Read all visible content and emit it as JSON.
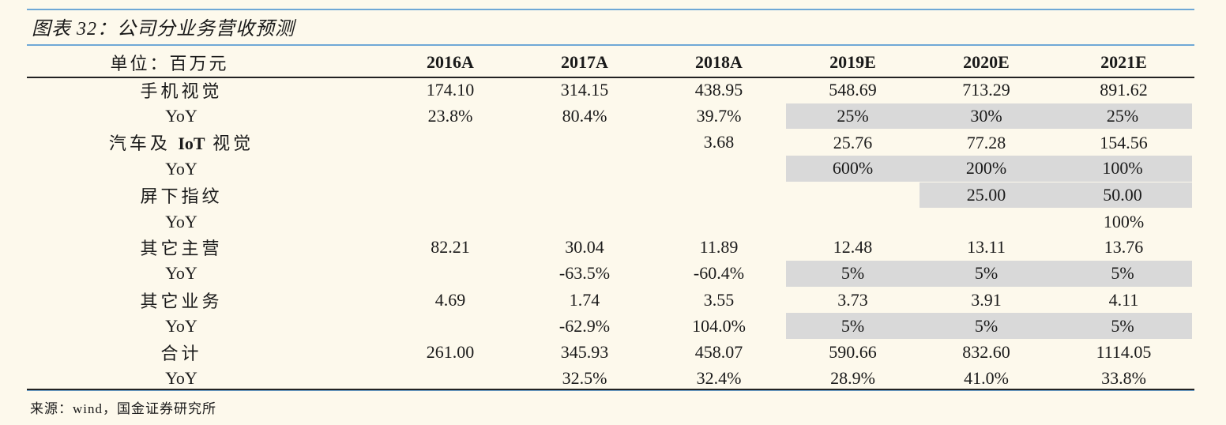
{
  "title": "图表 32：公司分业务营收预测",
  "table": {
    "unit_label": "单位：百万元",
    "columns": [
      "2016A",
      "2017A",
      "2018A",
      "2019E",
      "2020E",
      "2021E"
    ],
    "rows": [
      {
        "label": "手机视觉",
        "values": [
          "174.10",
          "314.15",
          "438.95",
          "548.69",
          "713.29",
          "891.62"
        ],
        "shaded": [
          false,
          false,
          false,
          false,
          false,
          false
        ]
      },
      {
        "label": "YoY",
        "values": [
          "23.8%",
          "80.4%",
          "39.7%",
          "25%",
          "30%",
          "25%"
        ],
        "shaded": [
          false,
          false,
          false,
          true,
          true,
          true
        ]
      },
      {
        "label_prefix": "汽车及 ",
        "label_bold": "IoT",
        "label_suffix": " 视觉",
        "values": [
          "",
          "",
          "3.68",
          "25.76",
          "77.28",
          "154.56"
        ],
        "shaded": [
          false,
          false,
          false,
          false,
          false,
          false
        ]
      },
      {
        "label": "YoY",
        "values": [
          "",
          "",
          "",
          "600%",
          "200%",
          "100%"
        ],
        "shaded": [
          false,
          false,
          false,
          true,
          true,
          true
        ]
      },
      {
        "label": "屏下指纹",
        "values": [
          "",
          "",
          "",
          "",
          "25.00",
          "50.00"
        ],
        "shaded": [
          false,
          false,
          false,
          false,
          true,
          true
        ]
      },
      {
        "label": "YoY",
        "values": [
          "",
          "",
          "",
          "",
          "",
          "100%"
        ],
        "shaded": [
          false,
          false,
          false,
          false,
          false,
          false
        ]
      },
      {
        "label": "其它主营",
        "values": [
          "82.21",
          "30.04",
          "11.89",
          "12.48",
          "13.11",
          "13.76"
        ],
        "shaded": [
          false,
          false,
          false,
          false,
          false,
          false
        ]
      },
      {
        "label": "YoY",
        "values": [
          "",
          "-63.5%",
          "-60.4%",
          "5%",
          "5%",
          "5%"
        ],
        "shaded": [
          false,
          false,
          false,
          true,
          true,
          true
        ]
      },
      {
        "label": "其它业务",
        "values": [
          "4.69",
          "1.74",
          "3.55",
          "3.73",
          "3.91",
          "4.11"
        ],
        "shaded": [
          false,
          false,
          false,
          false,
          false,
          false
        ]
      },
      {
        "label": "YoY",
        "values": [
          "",
          "-62.9%",
          "104.0%",
          "5%",
          "5%",
          "5%"
        ],
        "shaded": [
          false,
          false,
          false,
          true,
          true,
          true
        ]
      },
      {
        "label": "合计",
        "values": [
          "261.00",
          "345.93",
          "458.07",
          "590.66",
          "832.60",
          "1114.05"
        ],
        "shaded": [
          false,
          false,
          false,
          false,
          false,
          false
        ]
      },
      {
        "label": "YoY",
        "values": [
          "",
          "32.5%",
          "32.4%",
          "28.9%",
          "41.0%",
          "33.8%"
        ],
        "shaded": [
          false,
          false,
          false,
          false,
          false,
          false
        ]
      }
    ]
  },
  "source": "来源：wind，国金证券研究所",
  "colors": {
    "background": "#fdf9ec",
    "accent_rule": "#6fa8d6",
    "shade": "#d9d9d9"
  }
}
